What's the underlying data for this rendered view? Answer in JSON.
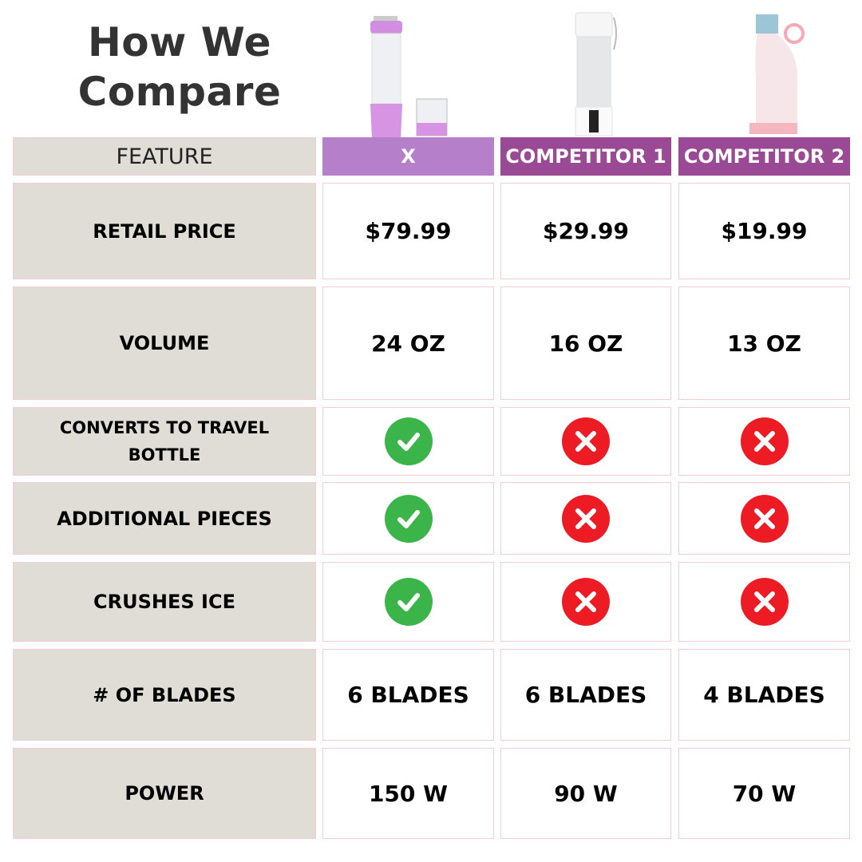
{
  "title": "How We Compare",
  "header": {
    "feature": "FEATURE",
    "products": [
      "X",
      "COMPETITOR 1",
      "COMPETITOR 2"
    ]
  },
  "colors": {
    "x_header": "#b57fc9",
    "competitor_header": "#9a4a94",
    "feature_bg": "#e0ddd6",
    "check": "#3bb54a",
    "cross": "#ed1c24"
  },
  "rows": [
    {
      "feature": "RETAIL PRICE",
      "values": [
        "$79.99",
        "$29.99",
        "$19.99"
      ]
    },
    {
      "feature": "VOLUME",
      "values": [
        "24 OZ",
        "16 OZ",
        "13 OZ"
      ]
    },
    {
      "feature": "CONVERTS TO TRAVEL BOTTLE",
      "icons": [
        "check-icon",
        "cross-icon",
        "cross-icon"
      ]
    },
    {
      "feature": "ADDITIONAL PIECES",
      "icons": [
        "check-icon",
        "cross-icon",
        "cross-icon"
      ]
    },
    {
      "feature": "CRUSHES ICE",
      "icons": [
        "check-icon",
        "cross-icon",
        "cross-icon"
      ]
    },
    {
      "feature": "# OF BLADES",
      "values": [
        "6 BLADES",
        "6 BLADES",
        "4 BLADES"
      ]
    },
    {
      "feature": "POWER",
      "values": [
        "150 W",
        "90 W",
        "70 W"
      ]
    }
  ]
}
